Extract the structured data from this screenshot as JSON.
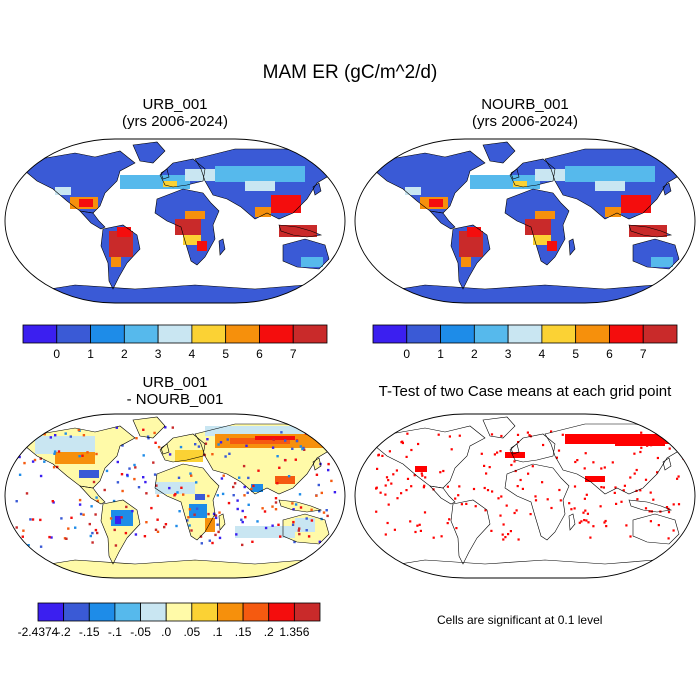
{
  "figure_title": "MAM ER (gC/m^2/d)",
  "panels": [
    {
      "title": "URB_001",
      "subtitle": "(yrs 2006-2024)"
    },
    {
      "title": "NOURB_001",
      "subtitle": "(yrs 2006-2024)"
    },
    {
      "title": "URB_001",
      "subtitle": "- NOURB_001"
    },
    {
      "title": "T-Test of two Case means at each grid point"
    }
  ],
  "significance_note": "Cells are significant at 0.1 level",
  "colorbar_top": {
    "colors": [
      "#3b1ff0",
      "#3a5ad6",
      "#1e8ce8",
      "#56b9ec",
      "#c9e6f2",
      "#fbd234",
      "#f6900c",
      "#f40d0d",
      "#c92a2a"
    ],
    "labels": [
      "0",
      "1",
      "2",
      "3",
      "4",
      "5",
      "6",
      "7"
    ]
  },
  "colorbar_bottom": {
    "colors": [
      "#3b1ff0",
      "#3a5ad6",
      "#1e8ce8",
      "#56b9ec",
      "#c9e6f2",
      "#fffaa8",
      "#fbd234",
      "#f6900c",
      "#f55a10",
      "#f40d0d",
      "#c92a2a"
    ],
    "labels": [
      "-2.4374",
      "-.2",
      "-.15",
      "-.1",
      "-.05",
      ".0",
      ".05",
      ".1",
      ".15",
      ".2",
      "1.356"
    ]
  },
  "significance_color": "#ff0000"
}
